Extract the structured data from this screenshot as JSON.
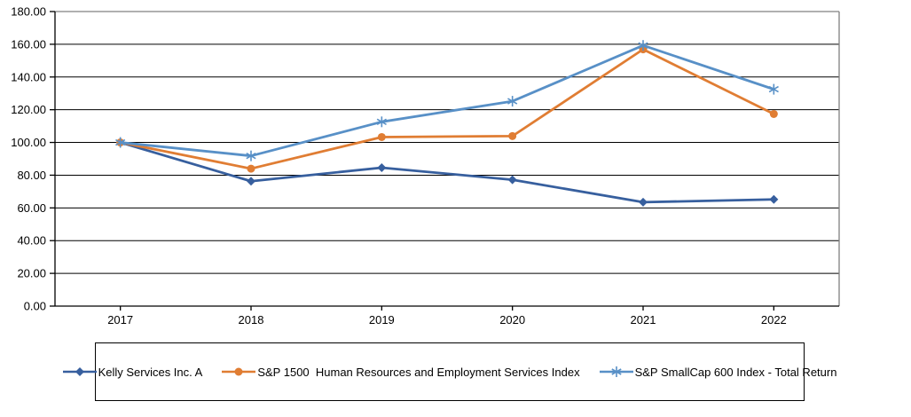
{
  "chart_data": {
    "type": "line",
    "title": "",
    "xlabel": "",
    "ylabel": "",
    "x_labels": [
      "2017",
      "2018",
      "2019",
      "2020",
      "2021",
      "2022"
    ],
    "ylim": [
      0,
      180
    ],
    "ytick_step": 20,
    "ytick_labels": [
      "0.00",
      "20.00",
      "40.00",
      "60.00",
      "80.00",
      "100.00",
      "120.00",
      "140.00",
      "160.00",
      "180.00"
    ],
    "grid": "horizontal",
    "legend_position": "bottom-box",
    "series": [
      {
        "name": "Kelly Services Inc. A",
        "marker": "diamond",
        "color": "#375F9E",
        "values": [
          100.0,
          76.3,
          84.6,
          77.2,
          63.5,
          65.2
        ]
      },
      {
        "name": "S&P 1500  Human Resources and Employment Services Index",
        "marker": "circle",
        "color": "#E07D33",
        "values": [
          100.0,
          84.0,
          103.3,
          103.9,
          156.9,
          117.4
        ]
      },
      {
        "name": "S&P SmallCap 600 Index - Total Return",
        "marker": "asterisk",
        "color": "#5890C7",
        "values": [
          100.0,
          91.8,
          112.6,
          125.2,
          159.3,
          132.5
        ]
      }
    ],
    "colors": {
      "gridline": "#000000",
      "axis": "#000000",
      "plot_border": "#808080",
      "background": "#FFFFFF"
    }
  }
}
